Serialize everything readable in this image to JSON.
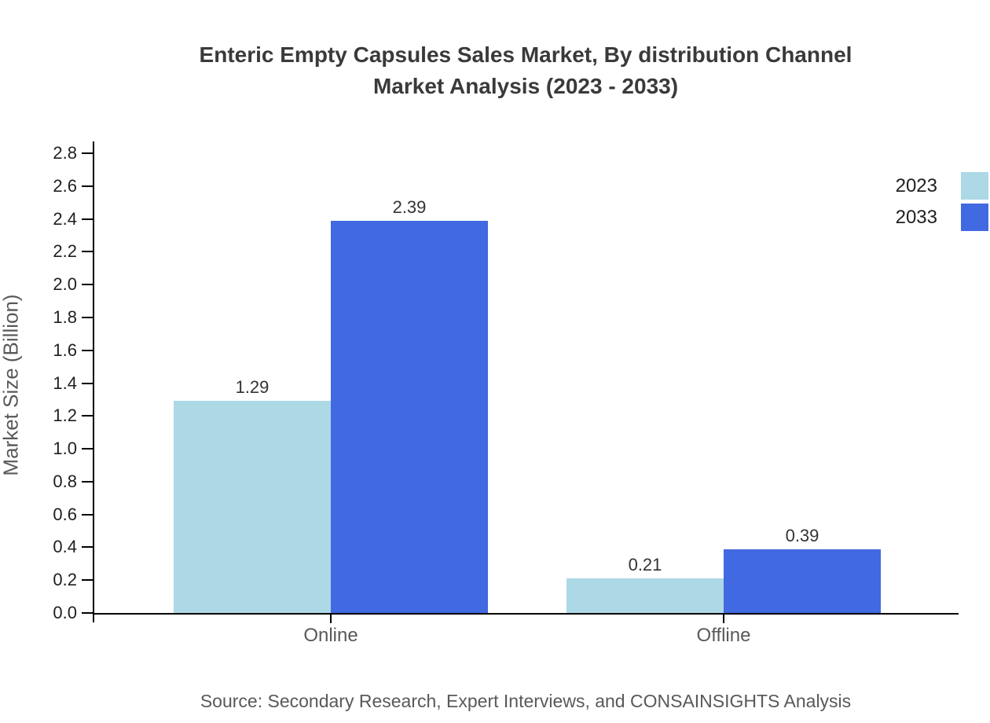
{
  "title": {
    "line1": "Enteric Empty Capsules Sales Market, By distribution Channel",
    "line2": "Market Analysis (2023 - 2033)"
  },
  "source": "Source: Secondary Research, Expert Interviews, and CONSAINSIGHTS Analysis",
  "colors": {
    "series_2023": "#ADD8E6",
    "series_2033": "#4169E1",
    "axis": "#000000",
    "title_text": "#3a3a3a",
    "muted_text": "#595959",
    "value_label_text": "#333333"
  },
  "chart_data": {
    "type": "bar",
    "categories": [
      "Online",
      "Offline"
    ],
    "series": [
      {
        "name": "2023",
        "color": "#ADD8E6",
        "values": [
          1.29,
          0.21
        ]
      },
      {
        "name": "2033",
        "color": "#4169E1",
        "values": [
          2.39,
          0.39
        ]
      }
    ],
    "value_labels": [
      "1.29",
      "2.39",
      "0.21",
      "0.39"
    ],
    "title": "Enteric Empty Capsules Sales Market, By distribution Channel Market Analysis (2023 - 2033)",
    "xlabel": "",
    "ylabel": "Market Size (Billion)",
    "ylim": [
      0.0,
      2.8
    ],
    "ytick_step": 0.2,
    "grid": false,
    "legend_position": "upper-right-outside"
  }
}
